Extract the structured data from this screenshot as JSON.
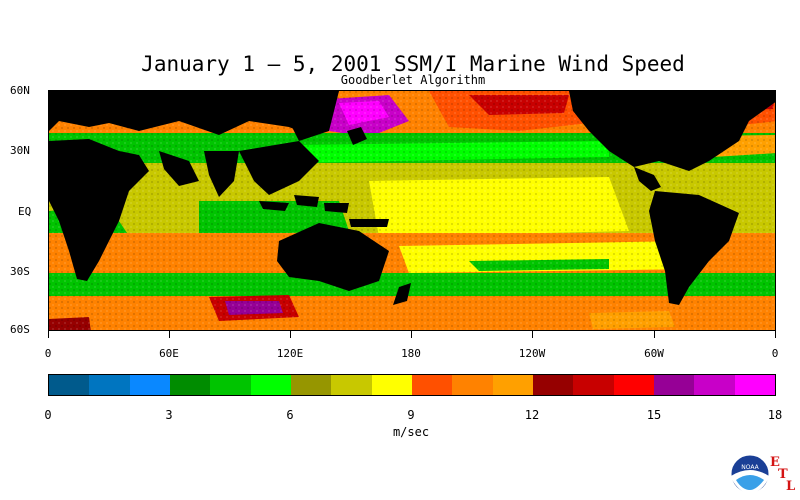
{
  "title": "January 1 – 5, 2001 SSM/I Marine Wind Speed",
  "subtitle": "Goodberlet Algorithm",
  "map": {
    "lat_labels": [
      "60N",
      "30N",
      "EQ",
      "30S",
      "60S"
    ],
    "lon_labels": [
      "0",
      "60E",
      "120E",
      "180",
      "120W",
      "60W",
      "0"
    ],
    "lat_range": [
      60,
      -60
    ],
    "lon_range": [
      0,
      360
    ]
  },
  "colorbar": {
    "units": "m/sec",
    "tick_labels": [
      "0",
      "3",
      "6",
      "9",
      "12",
      "15",
      "18"
    ],
    "colors": [
      "#005a8c",
      "#0075c0",
      "#0a88ff",
      "#008c00",
      "#00c400",
      "#00ff00",
      "#969600",
      "#c8c800",
      "#ffff00",
      "#ff5000",
      "#ff8200",
      "#ffa000",
      "#960000",
      "#c80000",
      "#ff0000",
      "#960096",
      "#c800c8",
      "#ff00ff"
    ]
  },
  "logo": {
    "agency_text": "NOAA",
    "lab_letters": [
      "E",
      "T",
      "L"
    ]
  }
}
